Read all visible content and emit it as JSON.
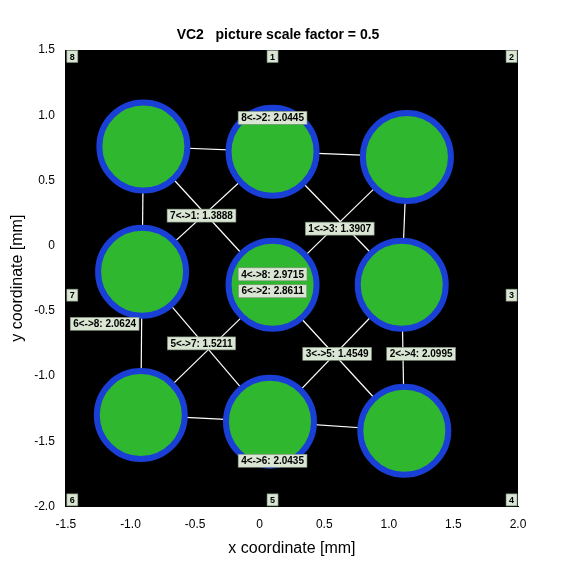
{
  "chart_data": {
    "type": "scatter",
    "title": "VC2   picture scale factor = 0.5",
    "x_label": "x coordinate [mm]",
    "y_label": "y coordinate [mm]",
    "xlim": [
      -1.5,
      2
    ],
    "ylim": [
      -2,
      1.5
    ],
    "xticks": [
      -1.5,
      -1,
      -0.5,
      0,
      0.5,
      1,
      1.5,
      2
    ],
    "yticks": [
      -2,
      -1.5,
      -1,
      -0.5,
      0,
      0.5,
      1,
      1.5
    ],
    "grid": false,
    "color": "#ffffff",
    "spots": [
      {
        "x": -0.9,
        "y": 0.76
      },
      {
        "x": 0.1,
        "y": 0.72
      },
      {
        "x": 1.14,
        "y": 0.68
      },
      {
        "x": -0.91,
        "y": -0.2
      },
      {
        "x": 0.1,
        "y": -0.3
      },
      {
        "x": 1.1,
        "y": -0.3
      },
      {
        "x": -0.92,
        "y": -1.3
      },
      {
        "x": 0.08,
        "y": -1.35
      },
      {
        "x": 1.12,
        "y": -1.42
      }
    ],
    "points": [
      {
        "id": "1",
        "x": 0.1,
        "y": 0.72
      },
      {
        "id": "2",
        "x": 1.14,
        "y": 0.68
      },
      {
        "id": "3",
        "x": 1.1,
        "y": -0.3
      },
      {
        "id": "4",
        "x": 1.12,
        "y": -1.42
      },
      {
        "id": "5",
        "x": 0.08,
        "y": -1.35
      },
      {
        "id": "6",
        "x": -0.92,
        "y": -1.3
      },
      {
        "id": "7",
        "x": -0.91,
        "y": -0.2
      },
      {
        "id": "8",
        "x": -0.9,
        "y": 0.76
      }
    ],
    "lines": [
      [
        "8",
        "1"
      ],
      [
        "1",
        "2"
      ],
      [
        "2",
        "3"
      ],
      [
        "3",
        "4"
      ],
      [
        "4",
        "5"
      ],
      [
        "5",
        "6"
      ],
      [
        "6",
        "7"
      ],
      [
        "7",
        "8"
      ],
      [
        "7",
        "1"
      ],
      [
        "1",
        "3"
      ],
      [
        "3",
        "5"
      ],
      [
        "5",
        "7"
      ],
      [
        "4",
        "8"
      ],
      [
        "6",
        "2"
      ]
    ],
    "annotations": [
      {
        "text": "8<->2: 2.0445",
        "x": 0.1,
        "y": 0.98
      },
      {
        "text": "7<->1: 1.3888",
        "x": -0.45,
        "y": 0.23
      },
      {
        "text": "1<->3: 1.3907",
        "x": 0.62,
        "y": 0.13
      },
      {
        "text": "4<->8: 2.9715",
        "x": 0.1,
        "y": -0.22
      },
      {
        "text": "6<->2: 2.8611",
        "x": 0.1,
        "y": -0.35
      },
      {
        "text": "6<->8: 2.0624",
        "x": -1.2,
        "y": -0.6
      },
      {
        "text": "5<->7: 1.5211",
        "x": -0.45,
        "y": -0.75
      },
      {
        "text": "3<->5: 1.4549",
        "x": 0.6,
        "y": -0.83
      },
      {
        "text": "2<->4: 2.0995",
        "x": 1.25,
        "y": -0.83
      },
      {
        "text": "4<->6: 2.0435",
        "x": 0.1,
        "y": -1.65
      }
    ],
    "edge_labels": [
      {
        "text": "8",
        "x": -1.45,
        "y": 1.45
      },
      {
        "text": "1",
        "x": 0.1,
        "y": 1.45
      },
      {
        "text": "2",
        "x": 1.95,
        "y": 1.45
      },
      {
        "text": "3",
        "x": 1.95,
        "y": -0.38
      },
      {
        "text": "4",
        "x": 1.95,
        "y": -1.95
      },
      {
        "text": "5",
        "x": 0.1,
        "y": -1.95
      },
      {
        "text": "6",
        "x": -1.45,
        "y": -1.95
      },
      {
        "text": "7",
        "x": -1.45,
        "y": -0.38
      }
    ]
  }
}
